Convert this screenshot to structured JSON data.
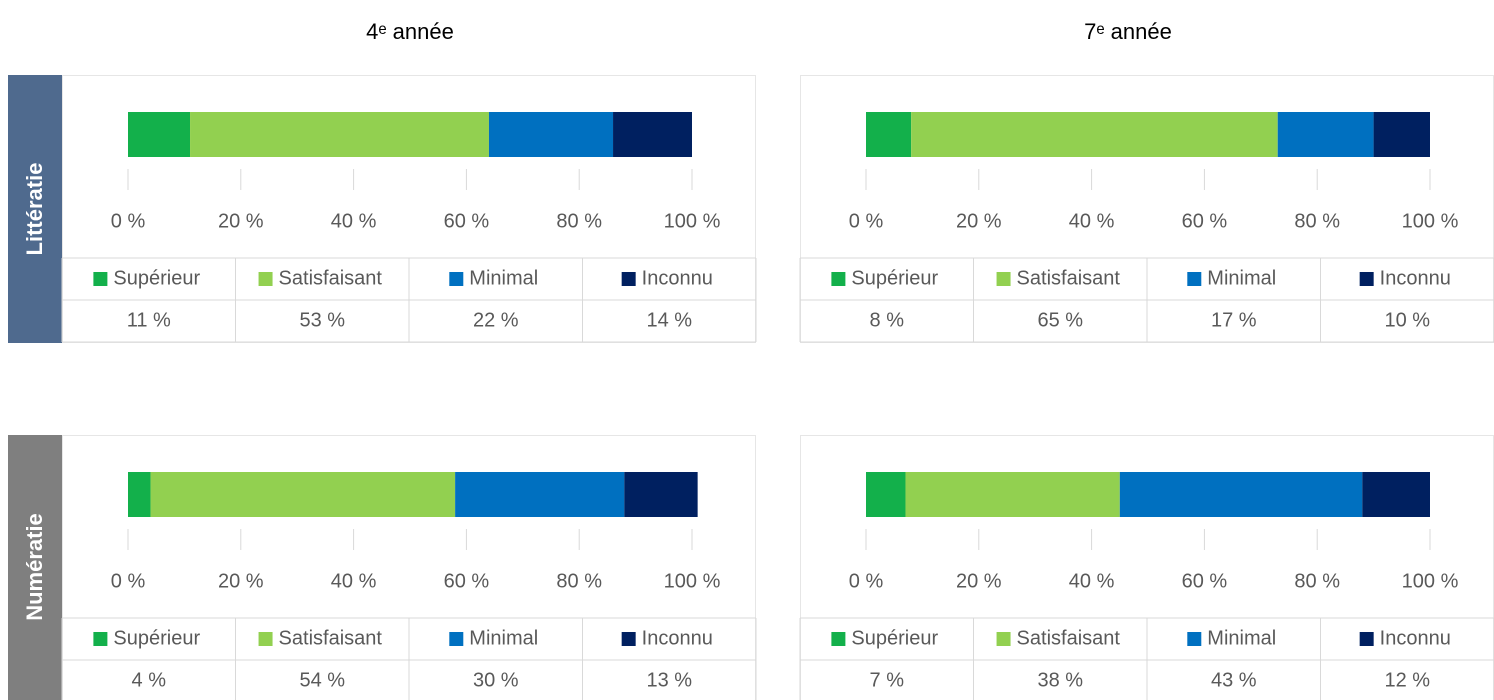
{
  "columns": [
    "4ᵉ année",
    "7ᵉ année"
  ],
  "rows": [
    "Littératie",
    "Numératie"
  ],
  "chart_data": [
    {
      "type": "bar",
      "orientation": "horizontal",
      "stacked": true,
      "categories": [
        null
      ],
      "xlim": [
        0,
        100
      ],
      "xticks": [
        {
          "value": 0,
          "label": "0 %"
        },
        {
          "value": 20,
          "label": "20 %"
        },
        {
          "value": 40,
          "label": "40 %"
        },
        {
          "value": 60,
          "label": "60 %"
        },
        {
          "value": 80,
          "label": "80 %"
        },
        {
          "value": 100,
          "label": "100 %"
        }
      ],
      "series": [
        {
          "name": "Supérieur",
          "color": "#13b04b",
          "values": [
            11
          ],
          "value_labels": [
            "11 %"
          ]
        },
        {
          "name": "Satisfaisant",
          "color": "#92d050",
          "values": [
            53
          ],
          "value_labels": [
            "53 %"
          ]
        },
        {
          "name": "Minimal",
          "color": "#0070c0",
          "values": [
            22
          ],
          "value_labels": [
            "22 %"
          ]
        },
        {
          "name": "Inconnu",
          "color": "#002060",
          "values": [
            14
          ],
          "value_labels": [
            "14 %"
          ]
        }
      ]
    },
    {
      "type": "bar",
      "orientation": "horizontal",
      "stacked": true,
      "categories": [
        null
      ],
      "xlim": [
        0,
        100
      ],
      "xticks": [
        {
          "value": 0,
          "label": "0 %"
        },
        {
          "value": 20,
          "label": "20 %"
        },
        {
          "value": 40,
          "label": "40 %"
        },
        {
          "value": 60,
          "label": "60 %"
        },
        {
          "value": 80,
          "label": "80 %"
        },
        {
          "value": 100,
          "label": "100 %"
        }
      ],
      "series": [
        {
          "name": "Supérieur",
          "color": "#13b04b",
          "values": [
            8
          ],
          "value_labels": [
            "8 %"
          ]
        },
        {
          "name": "Satisfaisant",
          "color": "#92d050",
          "values": [
            65
          ],
          "value_labels": [
            "65 %"
          ]
        },
        {
          "name": "Minimal",
          "color": "#0070c0",
          "values": [
            17
          ],
          "value_labels": [
            "17 %"
          ]
        },
        {
          "name": "Inconnu",
          "color": "#002060",
          "values": [
            10
          ],
          "value_labels": [
            "10 %"
          ]
        }
      ]
    },
    {
      "type": "bar",
      "orientation": "horizontal",
      "stacked": true,
      "categories": [
        null
      ],
      "xlim": [
        0,
        100
      ],
      "xticks": [
        {
          "value": 0,
          "label": "0 %"
        },
        {
          "value": 20,
          "label": "20 %"
        },
        {
          "value": 40,
          "label": "40 %"
        },
        {
          "value": 60,
          "label": "60 %"
        },
        {
          "value": 80,
          "label": "80 %"
        },
        {
          "value": 100,
          "label": "100 %"
        }
      ],
      "series": [
        {
          "name": "Supérieur",
          "color": "#13b04b",
          "values": [
            4
          ],
          "value_labels": [
            "4 %"
          ]
        },
        {
          "name": "Satisfaisant",
          "color": "#92d050",
          "values": [
            54
          ],
          "value_labels": [
            "54 %"
          ]
        },
        {
          "name": "Minimal",
          "color": "#0070c0",
          "values": [
            30
          ],
          "value_labels": [
            "30 %"
          ]
        },
        {
          "name": "Inconnu",
          "color": "#002060",
          "values": [
            13
          ],
          "value_labels": [
            "13 %"
          ]
        }
      ]
    },
    {
      "type": "bar",
      "orientation": "horizontal",
      "stacked": true,
      "categories": [
        null
      ],
      "xlim": [
        0,
        100
      ],
      "xticks": [
        {
          "value": 0,
          "label": "0 %"
        },
        {
          "value": 20,
          "label": "20 %"
        },
        {
          "value": 40,
          "label": "40 %"
        },
        {
          "value": 60,
          "label": "60 %"
        },
        {
          "value": 80,
          "label": "80 %"
        },
        {
          "value": 100,
          "label": "100 %"
        }
      ],
      "series": [
        {
          "name": "Supérieur",
          "color": "#13b04b",
          "values": [
            7
          ],
          "value_labels": [
            "7 %"
          ]
        },
        {
          "name": "Satisfaisant",
          "color": "#92d050",
          "values": [
            38
          ],
          "value_labels": [
            "38 %"
          ]
        },
        {
          "name": "Minimal",
          "color": "#0070c0",
          "values": [
            43
          ],
          "value_labels": [
            "43 %"
          ]
        },
        {
          "name": "Inconnu",
          "color": "#002060",
          "values": [
            12
          ],
          "value_labels": [
            "12 %"
          ]
        }
      ]
    }
  ]
}
